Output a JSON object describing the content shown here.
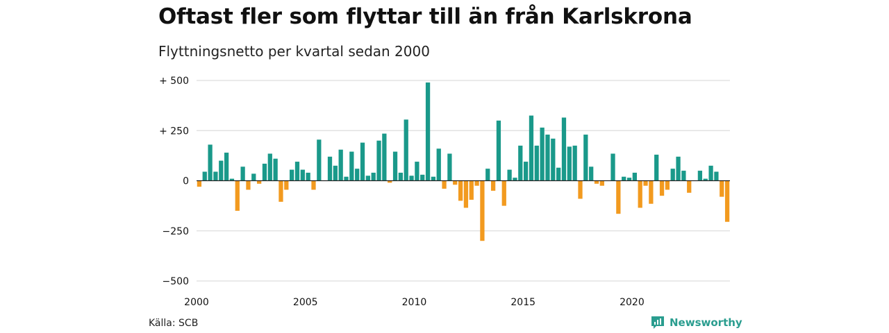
{
  "chart_data": {
    "type": "bar",
    "title": "Oftast fler som flyttar till än från Karlskrona",
    "subtitle": "Flyttningsnetto per kvartal sedan 2000",
    "x_start": "2000 Q1",
    "x_ticks": [
      "2000",
      "2005",
      "2010",
      "2015",
      "2020"
    ],
    "y_ticks": [
      500,
      250,
      0,
      -250,
      -500
    ],
    "y_tick_labels": [
      "+ 500",
      "+ 250",
      "0",
      "−250",
      "−500"
    ],
    "ylim": [
      -500,
      500
    ],
    "grid": true,
    "colors": {
      "positive": "#1a998a",
      "negative": "#f29a1f"
    },
    "values": [
      -30,
      45,
      180,
      45,
      100,
      140,
      10,
      -150,
      70,
      -45,
      35,
      -15,
      85,
      135,
      110,
      -105,
      -45,
      55,
      95,
      55,
      40,
      -45,
      205,
      0,
      120,
      75,
      155,
      20,
      145,
      60,
      190,
      25,
      40,
      200,
      235,
      -10,
      145,
      40,
      305,
      25,
      95,
      30,
      490,
      20,
      160,
      -40,
      135,
      -20,
      -100,
      -135,
      -95,
      -25,
      -300,
      60,
      -50,
      300,
      -125,
      55,
      15,
      175,
      95,
      325,
      175,
      265,
      230,
      210,
      65,
      315,
      170,
      175,
      -90,
      230,
      70,
      -15,
      -25,
      0,
      135,
      -165,
      20,
      15,
      40,
      -135,
      -25,
      -115,
      130,
      -75,
      -45,
      60,
      120,
      50,
      -60,
      0,
      50,
      10,
      75,
      45,
      -80,
      -205
    ]
  },
  "footer": {
    "source": "Källa: SCB",
    "brand": "Newsworthy",
    "brand_icon": "newsworthy-logo-icon"
  }
}
